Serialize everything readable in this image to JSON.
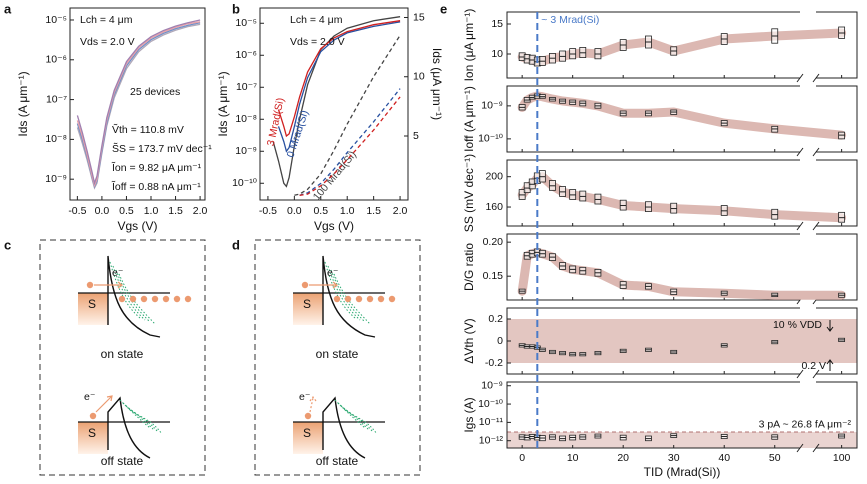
{
  "chart_data": [
    {
      "label": "a",
      "type": "line",
      "x_label": "Vgs (V)",
      "y_label": "Ids (A μm⁻¹)",
      "annotations": [
        "Lch = 4 μm",
        "Vds = 2.0 V",
        "25 devices",
        "Ṽth = 110.8 mV",
        "S̃S = 173.7 mV dec⁻¹",
        "Ĩon = 9.82 μA μm⁻¹",
        "Ĩoff = 0.88 nA μm⁻¹"
      ],
      "log_y": true,
      "xlim": [
        -0.65,
        2.1
      ],
      "ylim": [
        3e-10,
        2e-05
      ],
      "xticks": [
        -0.5,
        {
          "value": 0,
          "label": "0.0"
        },
        0.5,
        {
          "value": 1,
          "label": "1.0"
        },
        1.5,
        {
          "value": 2,
          "label": "2.0"
        }
      ],
      "yticks": [
        {
          "value": 1e-09,
          "label": "10⁻⁹"
        },
        {
          "value": 1e-08,
          "label": "10⁻⁸"
        },
        {
          "value": 1e-07,
          "label": "10⁻⁷"
        },
        {
          "value": 1e-06,
          "label": "10⁻⁶"
        },
        {
          "value": 1e-05,
          "label": "10⁻⁵"
        }
      ],
      "x": [
        -0.5,
        -0.4,
        -0.3,
        -0.2,
        -0.15,
        -0.1,
        0,
        0.1,
        0.25,
        0.5,
        0.75,
        1,
        1.25,
        1.5,
        1.75,
        2
      ],
      "series": [
        {
          "color": "#b0a8b8",
          "values": [
            2e-08,
            8e-09,
            3e-09,
            1e-09,
            6e-10,
            8e-10,
            4.5e-09,
            2.2e-08,
            1.1e-07,
            6e-07,
            1.6e-06,
            2.9e-06,
            4.2e-06,
            5.5e-06,
            6.8e-06,
            7.8e-06
          ]
        },
        {
          "color": "#7090c8",
          "values": [
            2.5e-08,
            1e-08,
            3.5e-09,
            1.1e-09,
            6.5e-10,
            9e-10,
            5e-09,
            2.5e-08,
            1.3e-07,
            7e-07,
            1.8e-06,
            3.2e-06,
            4.6e-06,
            6e-06,
            7.3e-06,
            8.5e-06
          ]
        },
        {
          "color": "#e8a0a8",
          "values": [
            3e-08,
            1.2e-08,
            4e-09,
            1.2e-09,
            7e-10,
            1e-09,
            6e-09,
            3e-08,
            1.5e-07,
            8e-07,
            2e-06,
            3.5e-06,
            5e-06,
            6.5e-06,
            8e-06,
            9e-06
          ]
        },
        {
          "color": "#a080b0",
          "values": [
            4e-08,
            1.5e-08,
            5e-09,
            1.5e-09,
            8e-10,
            1.2e-09,
            7e-09,
            3.5e-08,
            1.7e-07,
            9e-07,
            2.2e-06,
            3.8e-06,
            5.4e-06,
            7e-06,
            8.5e-06,
            1e-05
          ]
        }
      ]
    },
    {
      "label": "b",
      "type": "line",
      "x_label": "Vgs (V)",
      "y_label": "Ids (A μm⁻¹)",
      "y2_label": "Ids (μA μm⁻¹)",
      "annotations": [
        "Lch = 4 μm",
        "Vds = 2.0 V"
      ],
      "log_y": true,
      "xlim": [
        -0.65,
        2.15
      ],
      "ylim": [
        3e-11,
        3e-05
      ],
      "y2lim": [
        -0.4,
        15.8
      ],
      "xticks": [
        -0.5,
        {
          "value": 0,
          "label": "0.0"
        },
        0.5,
        {
          "value": 1,
          "label": "1.0"
        },
        1.5,
        {
          "value": 2,
          "label": "2.0"
        }
      ],
      "yticks": [
        {
          "value": 1e-10,
          "label": "10⁻¹⁰"
        },
        {
          "value": 1e-09,
          "label": "10⁻⁹"
        },
        {
          "value": 1e-08,
          "label": "10⁻⁸"
        },
        {
          "value": 1e-07,
          "label": "10⁻⁷"
        },
        {
          "value": 1e-06,
          "label": "10⁻⁶"
        },
        {
          "value": 1e-05,
          "label": "10⁻⁵"
        }
      ],
      "y2ticks": [
        5,
        10,
        15
      ],
      "x": [
        -0.4,
        -0.3,
        -0.2,
        -0.15,
        -0.1,
        0,
        0.1,
        0.25,
        0.5,
        0.75,
        1,
        1.5,
        2
      ],
      "series": [
        {
          "name": "100 Mrad(Si)",
          "color": "#444444",
          "values": [
            2e-09,
            5e-10,
            1e-10,
            8e-11,
            1.5e-10,
            1.5e-09,
            1e-08,
            1.2e-07,
            1.5e-06,
            4e-06,
            7e-06,
            1.2e-05,
            1.6e-05
          ]
        },
        {
          "name": "0 Mrad(Si)",
          "color": "#2850a0",
          "values": [
            null,
            6e-09,
            2e-09,
            1e-09,
            1.3e-09,
            6e-09,
            3e-08,
            2e-07,
            1.3e-06,
            3e-06,
            5e-06,
            8e-06,
            1.1e-05
          ]
        },
        {
          "name": "3 Mrad(Si)",
          "color": "#d02020",
          "values": [
            null,
            2e-08,
            6e-09,
            3e-09,
            3.5e-09,
            1.2e-08,
            5e-08,
            3e-07,
            1.6e-06,
            3.5e-06,
            5.5e-06,
            9e-06,
            1.2e-05
          ]
        },
        {
          "color": "#444444",
          "axis": "y2",
          "dash": true,
          "values": [
            null,
            null,
            null,
            null,
            null,
            0,
            0.1,
            0.5,
            1.8,
            3.8,
            6,
            10,
            13.5
          ]
        },
        {
          "color": "#2850a0",
          "axis": "y2",
          "dash": true,
          "values": [
            null,
            null,
            null,
            null,
            null,
            null,
            0,
            0.2,
            1,
            2.2,
            3.6,
            6.2,
            9
          ]
        },
        {
          "color": "#d02020",
          "axis": "y2",
          "dash": true,
          "values": [
            null,
            null,
            null,
            null,
            null,
            null,
            0,
            0.1,
            0.8,
            1.8,
            3,
            5.5,
            8.3
          ]
        }
      ]
    },
    {
      "label": "e",
      "type": "box",
      "x_label": "TID (Mrad(Si))",
      "trend_color": "#dcb8b2",
      "box_color": "#222222",
      "x": [
        0,
        1,
        2,
        3,
        4,
        6,
        8,
        10,
        12,
        15,
        20,
        25,
        30,
        40,
        50,
        100
      ],
      "xlim": [
        -3,
        103
      ],
      "xbreak": [
        55,
        95
      ],
      "xticks": [
        0,
        10,
        20,
        30,
        40,
        50,
        100
      ],
      "marker": {
        "x": 3,
        "label": "~ 3 Mrad(Si)",
        "color": "#4a7ac8"
      },
      "panels": [
        {
          "y_label": "Ion (μA μm⁻¹)",
          "log_y": false,
          "trend": true,
          "ylim": [
            6,
            17
          ],
          "yticks": [
            10,
            15
          ],
          "median": [
            9.5,
            9.2,
            9,
            8.7,
            8.8,
            9.3,
            9.6,
            10,
            10.2,
            10,
            11.5,
            12,
            10.5,
            12.5,
            13,
            13.5
          ],
          "q1": [
            8.9,
            8.5,
            8.3,
            8.0,
            8.1,
            8.5,
            8.8,
            9.2,
            9.4,
            9.2,
            10.6,
            11.0,
            9.8,
            11.6,
            11.8,
            12.6
          ],
          "q3": [
            10.2,
            9.9,
            9.8,
            9.5,
            9.6,
            10.1,
            10.5,
            10.9,
            11.1,
            10.9,
            12.4,
            13.0,
            11.2,
            13.4,
            14.2,
            14.5
          ]
        },
        {
          "y_label": "Ioff (A μm⁻¹)",
          "log_y": true,
          "trend": true,
          "ylim": [
            4e-11,
            4e-09
          ],
          "yticks": [
            {
              "value": 1e-10,
              "label": "10⁻¹⁰"
            },
            {
              "value": 1e-09,
              "label": "10⁻⁹"
            }
          ],
          "median": [
            9e-10,
            1.5e-09,
            1.8e-09,
            2e-09,
            1.9e-09,
            1.6e-09,
            1.4e-09,
            1.3e-09,
            1.2e-09,
            1e-09,
            6e-10,
            6e-10,
            6.5e-10,
            3e-10,
            2e-10,
            1.3e-10
          ],
          "q1": [
            7.5e-10,
            1.3e-09,
            1.6e-09,
            1.7e-09,
            1.7e-09,
            1.4e-09,
            1.2e-09,
            1.1e-09,
            1e-09,
            8.5e-10,
            5e-10,
            5e-10,
            5.5e-10,
            2.5e-10,
            1.6e-10,
            1e-10
          ],
          "q3": [
            1.1e-09,
            1.8e-09,
            2.1e-09,
            2.3e-09,
            2.2e-09,
            1.8e-09,
            1.6e-09,
            1.5e-09,
            1.4e-09,
            1.2e-09,
            7e-10,
            7e-10,
            7.5e-10,
            3.6e-10,
            2.4e-10,
            1.6e-10
          ]
        },
        {
          "y_label": "SS (mV dec⁻¹)",
          "log_y": false,
          "trend": true,
          "ylim": [
            135,
            222
          ],
          "yticks": [
            160,
            200
          ],
          "median": [
            176,
            185,
            190,
            198,
            200,
            188,
            180,
            176,
            174,
            170,
            162,
            160,
            158,
            155,
            150,
            146
          ],
          "q1": [
            170,
            179,
            184,
            191,
            193,
            182,
            174,
            170,
            168,
            164,
            156,
            154,
            152,
            149,
            144,
            140
          ],
          "q3": [
            183,
            192,
            197,
            205,
            208,
            195,
            187,
            183,
            181,
            177,
            169,
            167,
            165,
            162,
            157,
            153
          ]
        },
        {
          "y_label": "D/G ratio",
          "log_y": false,
          "trend": true,
          "ylim": [
            0.115,
            0.212
          ],
          "yticks": [
            0.15,
            {
              "value": 0.2,
              "label": "0.20"
            }
          ],
          "median": [
            0.128,
            0.18,
            0.183,
            0.185,
            0.183,
            0.178,
            0.165,
            0.16,
            0.158,
            0.155,
            0.137,
            0.135,
            0.127,
            0.125,
            0.122,
            0.122
          ],
          "q1": [
            0.125,
            0.175,
            0.178,
            0.18,
            0.178,
            0.173,
            0.16,
            0.155,
            0.153,
            0.15,
            0.132,
            0.131,
            0.123,
            0.122,
            0.12,
            0.119
          ],
          "q3": [
            0.131,
            0.185,
            0.188,
            0.19,
            0.188,
            0.183,
            0.17,
            0.165,
            0.163,
            0.16,
            0.142,
            0.139,
            0.131,
            0.128,
            0.125,
            0.125
          ]
        },
        {
          "y_label": "ΔVth (V)",
          "log_y": false,
          "trend": false,
          "ylim": [
            -0.3,
            0.3
          ],
          "yticks": [
            -0.2,
            0,
            0.2
          ],
          "band": [
            -0.2,
            0.2
          ],
          "annotations": [
            "10 % VDD",
            "0.2 V"
          ],
          "median": [
            -0.04,
            -0.05,
            -0.05,
            -0.06,
            -0.08,
            -0.1,
            -0.11,
            -0.12,
            -0.12,
            -0.11,
            -0.09,
            -0.08,
            -0.1,
            -0.04,
            -0.01,
            0.01
          ],
          "q1": [
            -0.055,
            -0.065,
            -0.065,
            -0.075,
            -0.095,
            -0.115,
            -0.125,
            -0.135,
            -0.135,
            -0.125,
            -0.105,
            -0.095,
            -0.115,
            -0.055,
            -0.025,
            -0.005
          ],
          "q3": [
            -0.025,
            -0.035,
            -0.035,
            -0.045,
            -0.065,
            -0.085,
            -0.095,
            -0.105,
            -0.105,
            -0.095,
            -0.075,
            -0.065,
            -0.085,
            -0.025,
            0.005,
            0.025
          ]
        },
        {
          "y_label": "Igs (A)",
          "log_y": true,
          "trend": false,
          "ylim": [
            4e-13,
            1.6e-09
          ],
          "yticks": [
            {
              "value": 1e-12,
              "label": "10⁻¹²"
            },
            {
              "value": 1e-11,
              "label": "10⁻¹¹"
            },
            {
              "value": 1e-10,
              "label": "10⁻¹⁰"
            },
            {
              "value": 1e-09,
              "label": "10⁻⁹"
            }
          ],
          "threshold": 3e-12,
          "threshold_label": "3 pA ~ 26.8 fA μm⁻²",
          "median": [
            1.6e-12,
            1.5e-12,
            1.7e-12,
            1.5e-12,
            1.4e-12,
            1.6e-12,
            1.3e-12,
            1.5e-12,
            1.6e-12,
            1.8e-12,
            1.5e-12,
            1.3e-12,
            1.9e-12,
            1.7e-12,
            1.6e-12,
            1.8e-12
          ],
          "q1": [
            1.2e-12,
            1.1e-12,
            1.3e-12,
            1.1e-12,
            1e-12,
            1.2e-12,
            1e-12,
            1.1e-12,
            1.2e-12,
            1.4e-12,
            1.1e-12,
            1e-12,
            1.5e-12,
            1.3e-12,
            1.2e-12,
            1.4e-12
          ],
          "q3": [
            2.1e-12,
            2e-12,
            2.2e-12,
            2e-12,
            1.9e-12,
            2.1e-12,
            1.8e-12,
            2e-12,
            2.1e-12,
            2.3e-12,
            2e-12,
            1.8e-12,
            2.4e-12,
            2.2e-12,
            2.1e-12,
            2.3e-12
          ]
        }
      ]
    }
  ],
  "diagrams": [
    {
      "label": "c",
      "sources": [
        "S",
        "S"
      ],
      "electrons": [
        "e⁻",
        "e⁻"
      ],
      "states": [
        "on state",
        "off state"
      ]
    },
    {
      "label": "d",
      "sources": [
        "S",
        "S"
      ],
      "electrons": [
        "e⁻",
        "e⁻"
      ],
      "states": [
        "on state",
        "off state"
      ]
    }
  ]
}
